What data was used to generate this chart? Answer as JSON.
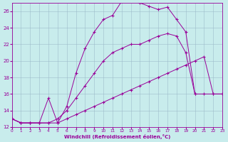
{
  "xlabel": "Windchill (Refroidissement éolien,°C)",
  "bg_color": "#c8ecec",
  "line_color": "#990099",
  "xlim": [
    0,
    23
  ],
  "ylim": [
    12,
    27
  ],
  "xticks": [
    0,
    1,
    2,
    3,
    4,
    5,
    6,
    7,
    8,
    9,
    10,
    11,
    12,
    13,
    14,
    15,
    16,
    17,
    18,
    19,
    20,
    21,
    22,
    23
  ],
  "yticks": [
    12,
    14,
    16,
    18,
    20,
    22,
    24,
    26
  ],
  "line_top_x": [
    0,
    1,
    2,
    3,
    4,
    5,
    6,
    7,
    8,
    9,
    10,
    11,
    12,
    13,
    14,
    15,
    16,
    17,
    18,
    19,
    20
  ],
  "line_top_y": [
    13,
    12.5,
    12.5,
    12.5,
    15.5,
    12.5,
    14.5,
    18.5,
    21.5,
    23.5,
    25,
    25.5,
    27.2,
    27.3,
    27.0,
    26.6,
    26.2,
    26.5,
    25.0,
    23.5,
    16
  ],
  "line_mid_x": [
    0,
    1,
    2,
    3,
    4,
    5,
    6,
    7,
    8,
    9,
    10,
    11,
    12,
    13,
    14,
    15,
    16,
    17,
    18,
    19,
    20,
    21,
    22,
    23
  ],
  "line_mid_y": [
    13,
    12.5,
    12.5,
    12.5,
    12.5,
    13,
    14,
    15.5,
    17,
    18.5,
    20,
    21,
    21.5,
    22,
    22,
    22.5,
    23,
    23.3,
    23.0,
    21.0,
    16,
    16,
    16,
    16
  ],
  "line_bot_x": [
    0,
    1,
    2,
    3,
    4,
    5,
    6,
    7,
    8,
    9,
    10,
    11,
    12,
    13,
    14,
    15,
    16,
    17,
    18,
    19,
    20,
    21,
    22,
    23
  ],
  "line_bot_y": [
    13,
    12.5,
    12.5,
    12.5,
    12.5,
    12.5,
    13,
    13.5,
    14,
    14.5,
    15,
    15.5,
    16,
    16.5,
    17,
    17.5,
    18,
    18.5,
    19,
    19.5,
    20,
    20.5,
    16,
    16
  ]
}
